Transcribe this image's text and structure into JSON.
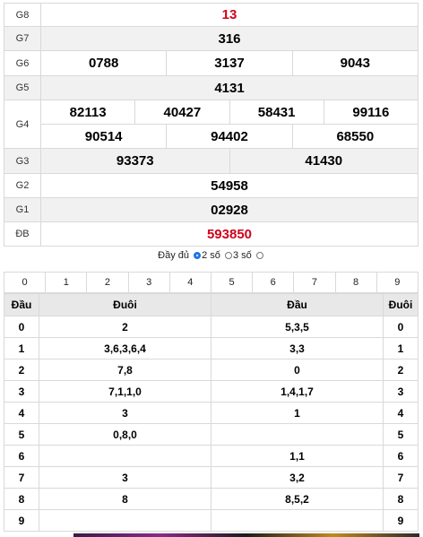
{
  "results": [
    {
      "label": "G8",
      "values": [
        "13"
      ],
      "red": true
    },
    {
      "label": "G7",
      "values": [
        "316"
      ]
    },
    {
      "label": "G6",
      "values": [
        "0788",
        "3137",
        "9043"
      ]
    },
    {
      "label": "G5",
      "values": [
        "4131"
      ]
    },
    {
      "label": "G4",
      "values": [
        "82113",
        "40427",
        "58431",
        "99116",
        "90514",
        "94402",
        "68550"
      ]
    },
    {
      "label": "G3",
      "values": [
        "93373",
        "41430"
      ]
    },
    {
      "label": "G2",
      "values": [
        "54958"
      ]
    },
    {
      "label": "G1",
      "values": [
        "02928"
      ]
    },
    {
      "label": "ĐB",
      "values": [
        "593850"
      ],
      "red": true
    }
  ],
  "filter": {
    "full": "Đầy đủ",
    "two": "2 số",
    "three": "3 số",
    "selected": "2 số"
  },
  "digits": [
    "0",
    "1",
    "2",
    "3",
    "4",
    "5",
    "6",
    "7",
    "8",
    "9"
  ],
  "loto": {
    "headers": {
      "dau": "Đầu",
      "duoi": "Đuôi",
      "dau2": "Đầu",
      "duoi2": "Đuôi"
    },
    "rows": [
      {
        "d": "0",
        "tails": "2",
        "heads": "5,3,5"
      },
      {
        "d": "1",
        "tails": "3,6,3,6,4",
        "heads": "3,3"
      },
      {
        "d": "2",
        "tails": "7,8",
        "heads": "0"
      },
      {
        "d": "3",
        "tails": "7,1,1,0",
        "heads": "1,4,1,7"
      },
      {
        "d": "4",
        "tails": "3",
        "heads": "1"
      },
      {
        "d": "5",
        "tails": "0,8,0",
        "heads": ""
      },
      {
        "d": "6",
        "tails": "",
        "heads": "1,1"
      },
      {
        "d": "7",
        "tails": "3",
        "heads": "3,2"
      },
      {
        "d": "8",
        "tails": "8",
        "heads": "8,5,2"
      },
      {
        "d": "9",
        "tails": "",
        "heads": ""
      }
    ]
  },
  "colors": {
    "accent_red": "#d0021b",
    "header_gray": "#e8e8e8",
    "radio_blue": "#1a73e8"
  }
}
